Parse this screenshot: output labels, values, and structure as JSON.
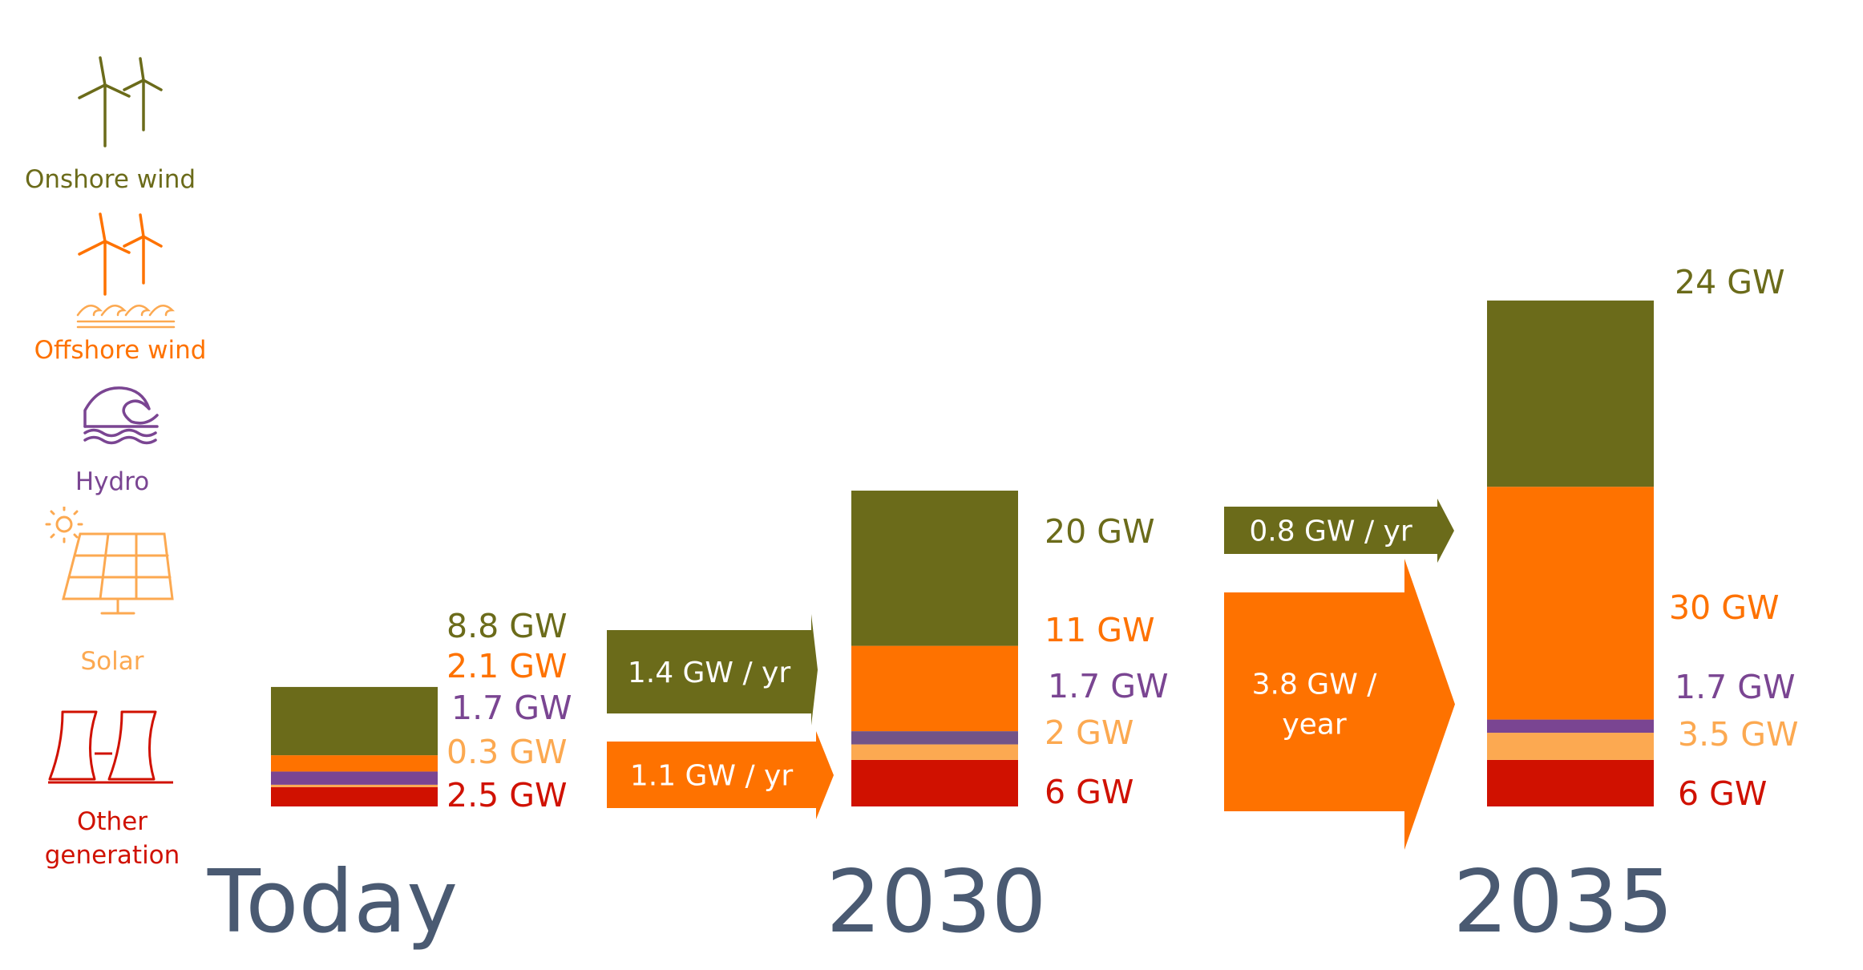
{
  "colors": {
    "onshore": "#6b6b1a",
    "offshore": "#fe7200",
    "hydro": "#7a4592",
    "solar": "#fca951",
    "other": "#d01100",
    "bar_hydro_2030": "#725388",
    "period": "#4a5a72"
  },
  "legend": [
    {
      "key": "onshore",
      "label": "Onshore wind",
      "icon": "wind-turbines-icon"
    },
    {
      "key": "offshore",
      "label": "Offshore wind",
      "icon": "offshore-wind-turbines-icon"
    },
    {
      "key": "hydro",
      "label": "Hydro",
      "icon": "wave-icon"
    },
    {
      "key": "solar",
      "label": "Solar",
      "icon": "solar-panel-icon"
    },
    {
      "key": "other",
      "label": "Other generation",
      "label_line1": "Other",
      "label_line2": "generation",
      "icon": "power-plant-icon"
    }
  ],
  "chart_data": {
    "type": "bar",
    "stacked": true,
    "unit": "GW",
    "categories": [
      "Today",
      "2030",
      "2035"
    ],
    "series": [
      {
        "name": "Other generation",
        "key": "other",
        "values": [
          2.5,
          6,
          6
        ],
        "labels": [
          "2.5 GW",
          "6 GW",
          "6 GW"
        ]
      },
      {
        "name": "Solar",
        "key": "solar",
        "values": [
          0.3,
          2,
          3.5
        ],
        "labels": [
          "0.3 GW",
          "2 GW",
          "3.5 GW"
        ]
      },
      {
        "name": "Hydro",
        "key": "hydro",
        "values": [
          1.7,
          1.7,
          1.7
        ],
        "labels": [
          "1.7 GW",
          "1.7 GW",
          "1.7 GW"
        ]
      },
      {
        "name": "Offshore wind",
        "key": "offshore",
        "values": [
          2.1,
          11,
          30
        ],
        "labels": [
          "2.1 GW",
          "11 GW",
          "30 GW"
        ]
      },
      {
        "name": "Onshore wind",
        "key": "onshore",
        "values": [
          8.8,
          20,
          24
        ],
        "labels": [
          "8.8 GW",
          "20 GW",
          "24 GW"
        ]
      }
    ],
    "growth_arrows": [
      {
        "key": "onshore",
        "from": "Today",
        "to": "2030",
        "label": "1.4 GW / yr"
      },
      {
        "key": "offshore",
        "from": "Today",
        "to": "2030",
        "label": "1.1 GW / yr"
      },
      {
        "key": "onshore",
        "from": "2030",
        "to": "2035",
        "label": "0.8 GW / yr"
      },
      {
        "key": "offshore",
        "from": "2030",
        "to": "2035",
        "label": "3.8 GW / year",
        "label_line1": "3.8 GW /",
        "label_line2": "year"
      }
    ]
  }
}
